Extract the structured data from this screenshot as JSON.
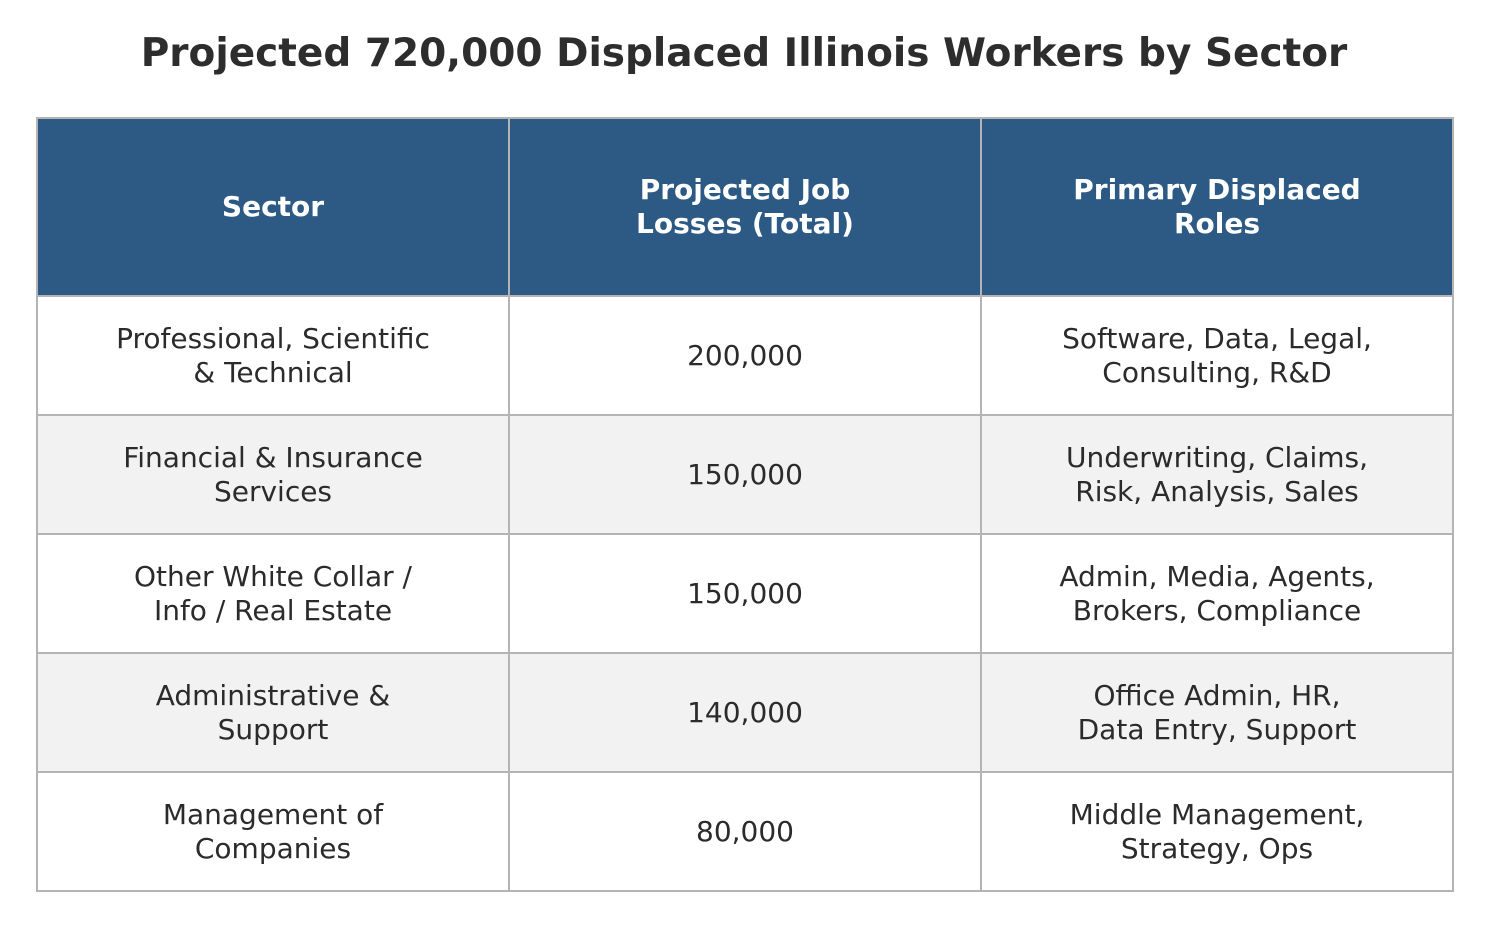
{
  "chart_data": {
    "type": "table",
    "title": "Projected 720,000 Displaced Illinois Workers by Sector",
    "columns": [
      "Sector",
      "Projected Job\nLosses (Total)",
      "Primary Displaced\nRoles"
    ],
    "rows": [
      [
        "Professional, Scientific\n& Technical",
        "200,000",
        "Software, Data, Legal,\nConsulting, R&D"
      ],
      [
        "Financial & Insurance\nServices",
        "150,000",
        "Underwriting, Claims,\nRisk, Analysis, Sales"
      ],
      [
        "Other White Collar /\nInfo / Real Estate",
        "150,000",
        "Admin, Media, Agents,\nBrokers, Compliance"
      ],
      [
        "Administrative &\nSupport",
        "140,000",
        "Office Admin, HR,\nData Entry, Support"
      ],
      [
        "Management of\nCompanies",
        "80,000",
        "Middle Management,\nStrategy, Ops"
      ]
    ],
    "values": [
      200000,
      150000,
      150000,
      140000,
      80000
    ]
  },
  "colors": {
    "header_background": "#2c5a84",
    "header_text": "#ffffff",
    "row_even_background": "#f2f2f2",
    "row_odd_background": "#ffffff",
    "border": "#b4b4b4"
  }
}
